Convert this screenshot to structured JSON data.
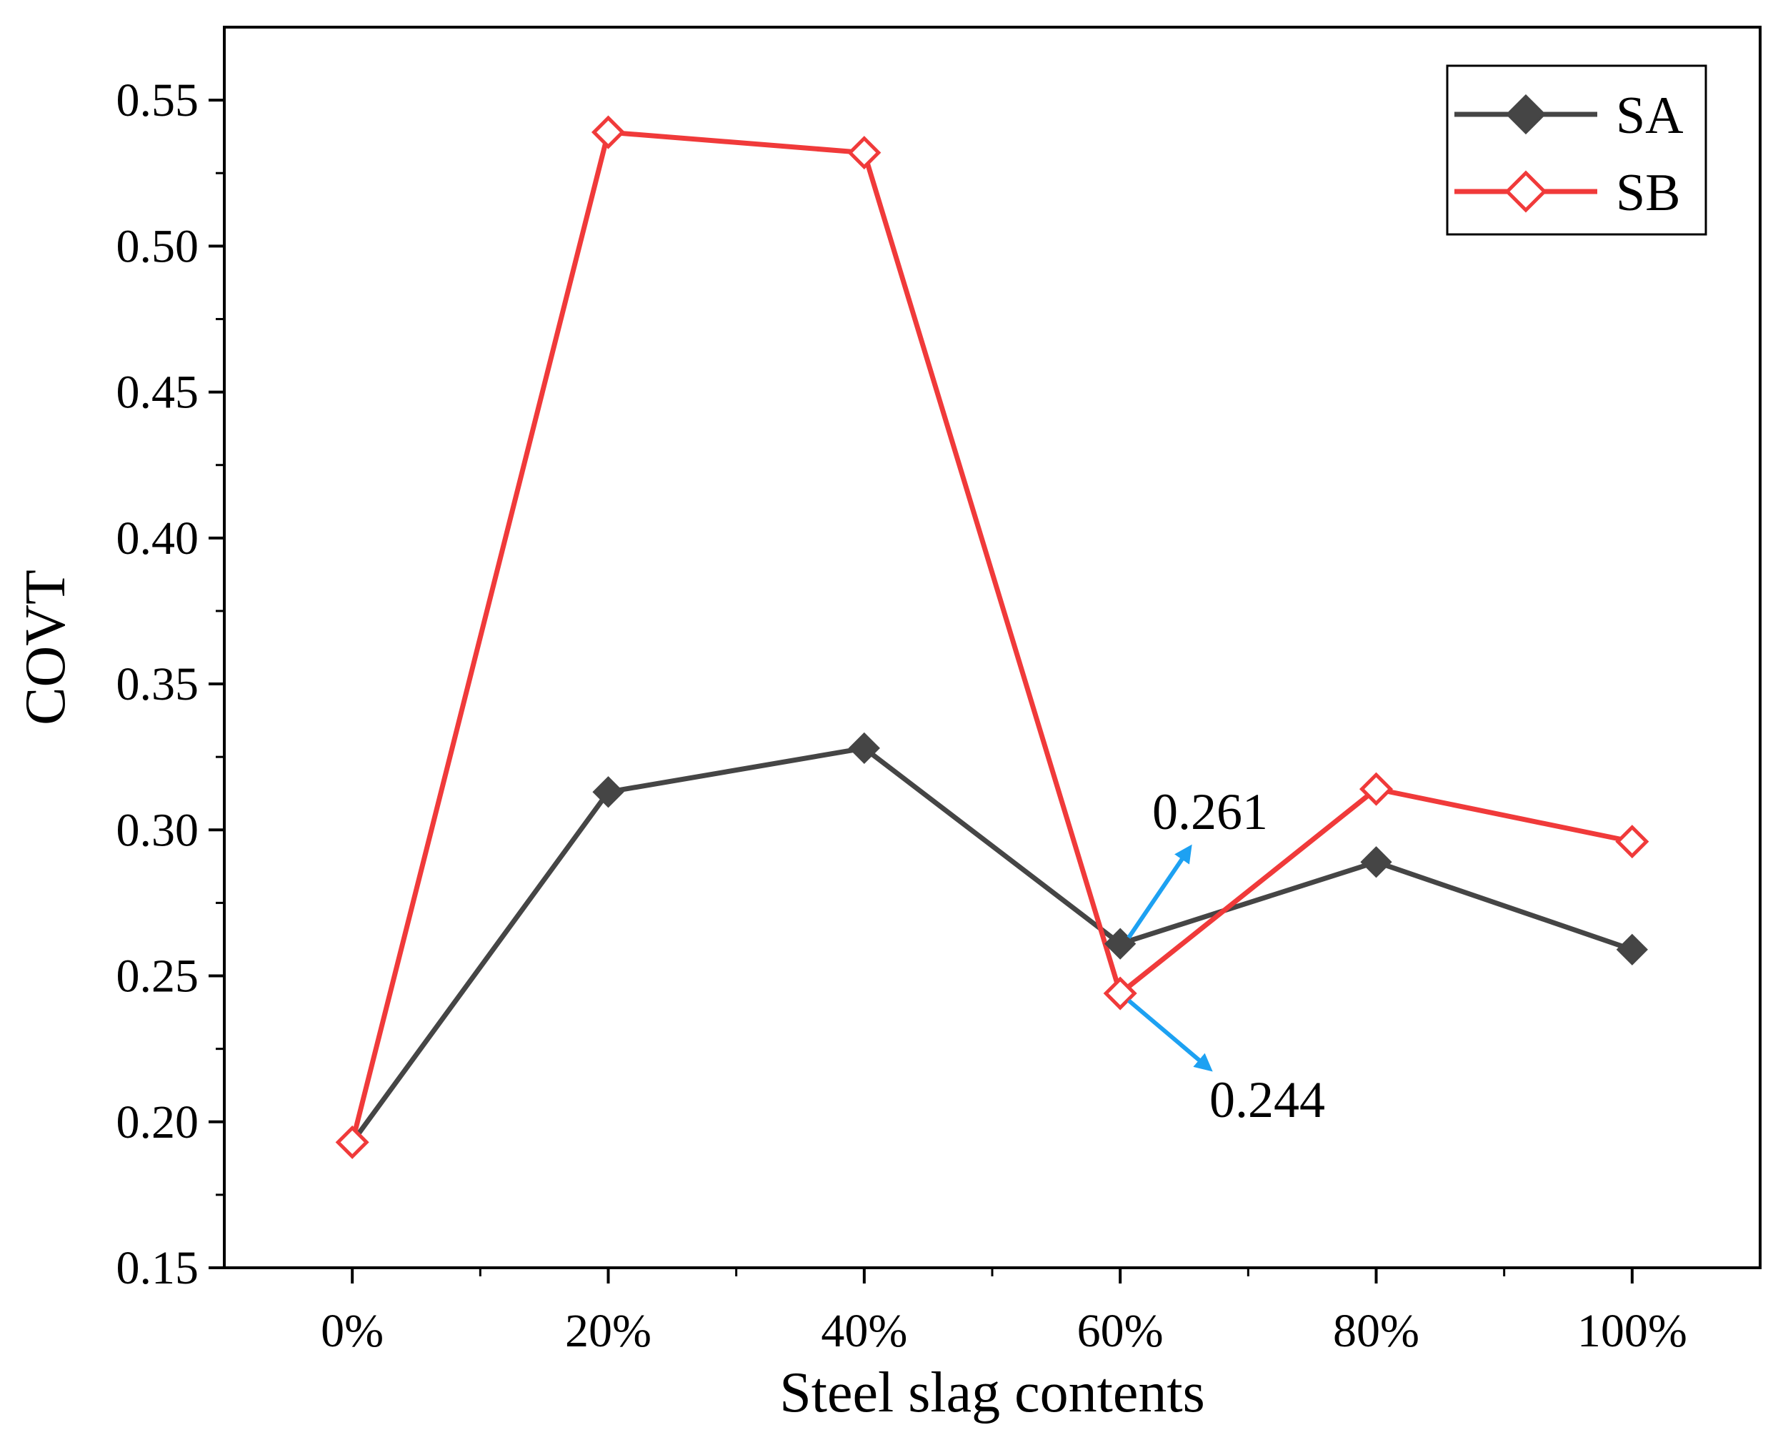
{
  "chart_data": {
    "type": "line",
    "title": "",
    "xlabel": "Steel slag contents",
    "ylabel": "COVT",
    "categories": [
      "0%",
      "20%",
      "40%",
      "60%",
      "80%",
      "100%"
    ],
    "ylim": [
      0.15,
      0.575
    ],
    "xlim": [
      -0.5,
      5.5
    ],
    "yticks": [
      "0.15",
      "0.20",
      "0.25",
      "0.30",
      "0.35",
      "0.40",
      "0.45",
      "0.50",
      "0.55"
    ],
    "ytick_values": [
      0.15,
      0.2,
      0.25,
      0.3,
      0.35,
      0.4,
      0.45,
      0.5,
      0.55
    ],
    "series": [
      {
        "name": "SA",
        "color": "#454545",
        "marker": "filled-diamond",
        "values": [
          0.193,
          0.313,
          0.328,
          0.261,
          0.289,
          0.259
        ]
      },
      {
        "name": "SB",
        "color": "#f03a3a",
        "marker": "open-diamond",
        "values": [
          0.193,
          0.539,
          0.532,
          0.244,
          0.314,
          0.296
        ]
      }
    ],
    "legend_position": "top-right",
    "grid": false,
    "annotations": [
      {
        "text": "0.261",
        "series": "SA",
        "category": "60%",
        "direction": "up-right",
        "arrow_color": "#1da1f2"
      },
      {
        "text": "0.244",
        "series": "SB",
        "category": "60%",
        "direction": "down-right",
        "arrow_color": "#1da1f2"
      }
    ]
  }
}
